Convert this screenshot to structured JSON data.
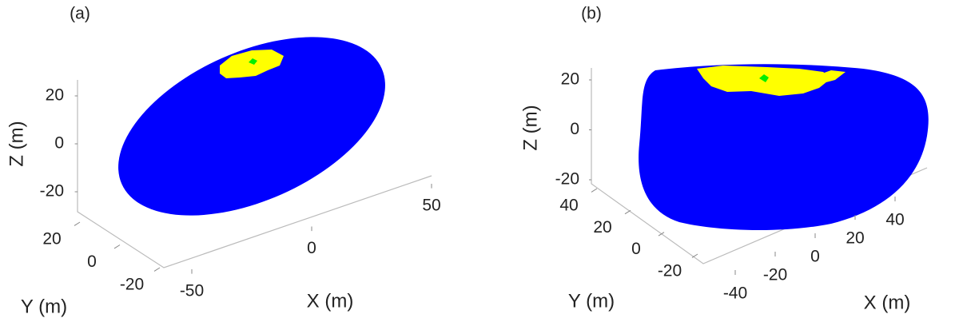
{
  "chart_data": [
    {
      "type": "surface3d",
      "panel_label": "(a)",
      "xlabel": "X (m)",
      "ylabel": "Y (m)",
      "zlabel": "Z (m)",
      "xticks": [
        -50,
        0,
        50
      ],
      "yticks": [
        -20,
        0,
        20
      ],
      "zticks": [
        -20,
        0,
        20
      ],
      "colors": [
        "#0000ff",
        "#ffff00",
        "#00ee00"
      ]
    },
    {
      "type": "surface3d",
      "panel_label": "(b)",
      "xlabel": "X (m)",
      "ylabel": "Y (m)",
      "zlabel": "Z (m)",
      "xticks": [
        -40,
        -20,
        0,
        20,
        40
      ],
      "yticks": [
        -20,
        0,
        20,
        40
      ],
      "zticks": [
        -20,
        0,
        20
      ],
      "colors": [
        "#0000ff",
        "#ffff00",
        "#00ee00"
      ]
    }
  ]
}
